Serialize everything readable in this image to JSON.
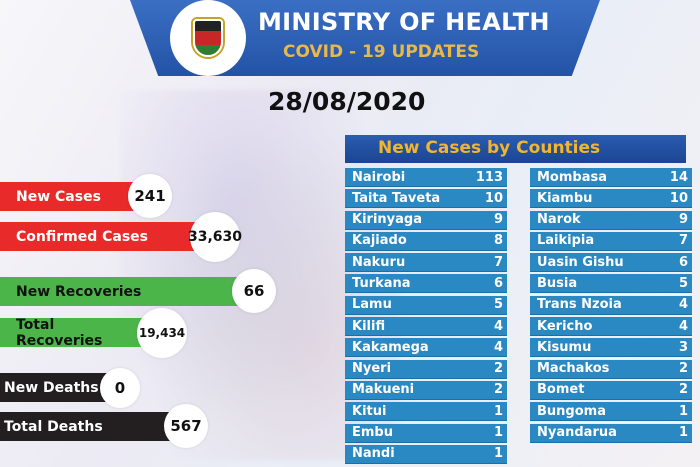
{
  "header": {
    "title": "MINISTRY OF HEALTH",
    "subtitle": "COVID - 19 UPDATES",
    "date": "28/08/2020",
    "logo": "kenya-coat-of-arms"
  },
  "stats": [
    {
      "label": "New Cases",
      "value": "241",
      "color": "#e82a2a"
    },
    {
      "label": "Confirmed Cases",
      "value": "33,630",
      "color": "#e82a2a"
    },
    {
      "label": "New Recoveries",
      "value": "66",
      "color": "#4cb54a"
    },
    {
      "label": "Total Recoveries",
      "value": "19,434",
      "color": "#4cb54a"
    },
    {
      "label": "New Deaths",
      "value": "0",
      "color": "#231f20"
    },
    {
      "label": "Total Deaths",
      "value": "567",
      "color": "#231f20"
    }
  ],
  "counties": {
    "title": "New Cases by Counties",
    "left": [
      [
        "Nairobi",
        "113"
      ],
      [
        "Taita Taveta",
        "10"
      ],
      [
        "Kirinyaga",
        "9"
      ],
      [
        "Kajiado",
        "8"
      ],
      [
        "Nakuru",
        "7"
      ],
      [
        "Turkana",
        "6"
      ],
      [
        "Lamu",
        "5"
      ],
      [
        "Kilifi",
        "4"
      ],
      [
        "Kakamega",
        "4"
      ],
      [
        "Nyeri",
        "2"
      ],
      [
        "Makueni",
        "2"
      ],
      [
        "Kitui",
        "1"
      ],
      [
        "Embu",
        "1"
      ],
      [
        "Nandi",
        "1"
      ]
    ],
    "right": [
      [
        "Mombasa",
        "14"
      ],
      [
        "Kiambu",
        "10"
      ],
      [
        "Narok",
        "9"
      ],
      [
        "Laikipia",
        "7"
      ],
      [
        "Uasin Gishu",
        "6"
      ],
      [
        "Busia",
        "5"
      ],
      [
        "Trans Nzoia",
        "4"
      ],
      [
        "Kericho",
        "4"
      ],
      [
        "Kisumu",
        "3"
      ],
      [
        "Machakos",
        "2"
      ],
      [
        "Bomet",
        "2"
      ],
      [
        "Bungoma",
        "1"
      ],
      [
        "Nyandarua",
        "1"
      ]
    ]
  }
}
